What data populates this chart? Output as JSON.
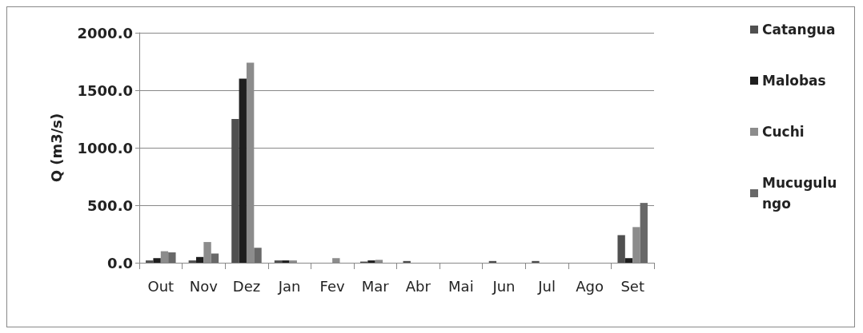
{
  "chart_data": {
    "type": "bar",
    "ylabel": "Q (m3/s)",
    "categories": [
      "Out",
      "Nov",
      "Dez",
      "Jan",
      "Fev",
      "Mar",
      "Abr",
      "Mai",
      "Jun",
      "Jul",
      "Ago",
      "Set"
    ],
    "series": [
      {
        "name": "Catangua",
        "color": "#505050",
        "values": [
          20,
          20,
          1250,
          20,
          0,
          10,
          15,
          0,
          15,
          15,
          0,
          240
        ]
      },
      {
        "name": "Malobas",
        "color": "#1e1e1e",
        "values": [
          40,
          50,
          1600,
          20,
          0,
          20,
          0,
          0,
          0,
          0,
          0,
          40
        ]
      },
      {
        "name": "Cuchi",
        "color": "#8c8c8c",
        "values": [
          100,
          180,
          1740,
          20,
          40,
          25,
          0,
          0,
          0,
          0,
          0,
          310
        ]
      },
      {
        "name": "Mucugulungo",
        "color": "#686868",
        "values": [
          90,
          80,
          130,
          0,
          0,
          0,
          0,
          0,
          0,
          0,
          0,
          520
        ]
      }
    ],
    "ylim": [
      0,
      2000
    ],
    "yticks": [
      {
        "value": 0,
        "label": "0.0"
      },
      {
        "value": 500,
        "label": "500.0"
      },
      {
        "value": 1000,
        "label": "1000.0"
      },
      {
        "value": 1500,
        "label": "1500.0"
      },
      {
        "value": 2000,
        "label": "2000.0"
      }
    ],
    "grid": "y",
    "legend": "right"
  }
}
